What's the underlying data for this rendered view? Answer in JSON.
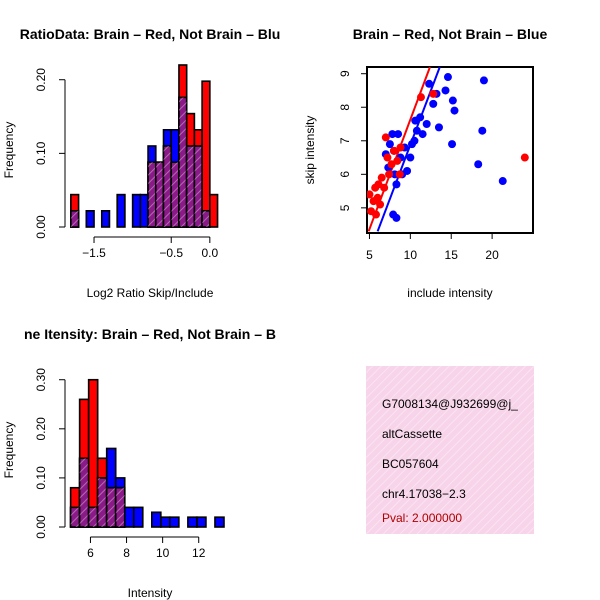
{
  "chart_data": [
    {
      "type": "histogram",
      "title": "RatioData: Brain – Red, Not Brain – Blu",
      "xlabel": "Log2 Ratio Skip/Include",
      "ylabel": "Frequency",
      "xlim": [
        -1.85,
        0.3
      ],
      "ylim": [
        0,
        0.22
      ],
      "xticks": [
        -1.5,
        -0.5,
        0.0
      ],
      "xtick_labels": [
        "−1.5",
        "−0.5",
        "0.0"
      ],
      "yticks": [
        0.0,
        0.1,
        0.2
      ],
      "ytick_labels": [
        "0.00",
        "0.10",
        "0.20"
      ],
      "bin_edges": [
        -1.8,
        -1.7,
        -1.6,
        -1.5,
        -1.4,
        -1.3,
        -1.2,
        -1.1,
        -1.0,
        -0.9,
        -0.8,
        -0.7,
        -0.6,
        -0.5,
        -0.4,
        -0.3,
        -0.2,
        -0.1,
        0.0,
        0.1
      ],
      "series": [
        {
          "name": "Not Brain",
          "color": "#0000ff",
          "values": [
            0.022,
            0,
            0.022,
            0,
            0.022,
            0,
            0.044,
            0,
            0.044,
            0.044,
            0.11,
            0.088,
            0.132,
            0.132,
            0.176,
            0.11,
            0.11,
            0.022,
            0
          ]
        },
        {
          "name": "Brain",
          "color": "#ff0000",
          "values": [
            0.044,
            0,
            0,
            0,
            0,
            0,
            0,
            0,
            0,
            0,
            0.088,
            0.088,
            0.11,
            0.088,
            0.22,
            0.154,
            0.132,
            0.198,
            0.044
          ]
        }
      ],
      "overlap_color": "#8b1a89"
    },
    {
      "type": "scatter",
      "title": "Brain – Red, Not Brain – Blue",
      "xlabel": "include intensity",
      "ylabel": "skip intensity",
      "xlim": [
        4.7,
        25.0
      ],
      "ylim": [
        4.25,
        9.2
      ],
      "xticks": [
        5,
        10,
        15,
        20
      ],
      "xtick_labels": [
        "5",
        "10",
        "15",
        "20"
      ],
      "yticks": [
        5,
        6,
        7,
        8,
        9
      ],
      "ytick_labels": [
        "5",
        "6",
        "7",
        "8",
        "9"
      ],
      "series": [
        {
          "name": "Not Brain",
          "color": "#0000ff",
          "points": [
            [
              7.0,
              6.6
            ],
            [
              7.3,
              6.2
            ],
            [
              7.5,
              6.9
            ],
            [
              7.8,
              7.2
            ],
            [
              8.0,
              6.7
            ],
            [
              8.1,
              6.0
            ],
            [
              8.3,
              5.7
            ],
            [
              7.9,
              4.8
            ],
            [
              8.3,
              4.7
            ],
            [
              8.5,
              7.2
            ],
            [
              8.8,
              6.5
            ],
            [
              9.0,
              6.0
            ],
            [
              9.3,
              6.8
            ],
            [
              9.6,
              6.1
            ],
            [
              10.0,
              6.5
            ],
            [
              10.2,
              6.9
            ],
            [
              10.5,
              7.0
            ],
            [
              10.6,
              7.6
            ],
            [
              10.8,
              7.3
            ],
            [
              11.2,
              7.7
            ],
            [
              11.5,
              7.2
            ],
            [
              12.0,
              7.5
            ],
            [
              12.3,
              8.7
            ],
            [
              12.8,
              8.1
            ],
            [
              13.2,
              8.4
            ],
            [
              13.5,
              7.4
            ],
            [
              14.3,
              8.5
            ],
            [
              14.6,
              8.9
            ],
            [
              15.2,
              8.2
            ],
            [
              15.4,
              7.9
            ],
            [
              15.1,
              6.9
            ],
            [
              18.3,
              6.3
            ],
            [
              18.8,
              7.3
            ],
            [
              19.0,
              8.8
            ],
            [
              21.3,
              5.8
            ]
          ],
          "fit": [
            [
              6.0,
              4.3
            ],
            [
              13.6,
              9.2
            ]
          ]
        },
        {
          "name": "Brain",
          "color": "#ff0000",
          "points": [
            [
              5.0,
              5.4
            ],
            [
              5.2,
              4.9
            ],
            [
              5.5,
              5.2
            ],
            [
              5.7,
              5.6
            ],
            [
              5.8,
              4.8
            ],
            [
              6.0,
              5.3
            ],
            [
              6.1,
              5.7
            ],
            [
              6.3,
              5.1
            ],
            [
              6.5,
              5.9
            ],
            [
              6.8,
              5.6
            ],
            [
              7.0,
              7.1
            ],
            [
              7.2,
              6.5
            ],
            [
              7.4,
              6.0
            ],
            [
              7.7,
              6.3
            ],
            [
              8.0,
              6.7
            ],
            [
              8.4,
              6.4
            ],
            [
              8.7,
              6.0
            ],
            [
              8.8,
              6.8
            ],
            [
              11.3,
              8.3
            ],
            [
              12.8,
              8.4
            ],
            [
              24.0,
              6.5
            ]
          ],
          "fit": [
            [
              4.9,
              4.3
            ],
            [
              12.4,
              9.2
            ]
          ]
        }
      ]
    },
    {
      "type": "histogram",
      "title": "ne Itensity: Brain – Red, Not Brain – B",
      "xlabel": "Intensity",
      "ylabel": "Frequency",
      "xlim": [
        4.7,
        13.9
      ],
      "ylim": [
        0,
        0.33
      ],
      "xticks": [
        6,
        8,
        10,
        12
      ],
      "xtick_labels": [
        "6",
        "8",
        "10",
        "12"
      ],
      "yticks": [
        0.0,
        0.1,
        0.2,
        0.3
      ],
      "ytick_labels": [
        "0.00",
        "0.10",
        "0.20",
        "0.30"
      ],
      "bin_edges": [
        4.9,
        5.4,
        5.9,
        6.4,
        6.9,
        7.4,
        7.9,
        8.4,
        8.9,
        9.4,
        9.9,
        10.4,
        10.9,
        11.4,
        11.9,
        12.4,
        12.9,
        13.4
      ],
      "series": [
        {
          "name": "Not Brain",
          "color": "#0000ff",
          "values": [
            0.04,
            0.14,
            0.04,
            0.1,
            0.16,
            0.1,
            0.04,
            0.04,
            0,
            0.03,
            0.02,
            0.02,
            0,
            0.02,
            0.02,
            0,
            0.02
          ]
        },
        {
          "name": "Brain",
          "color": "#ff0000",
          "values": [
            0.08,
            0.26,
            0.3,
            0.14,
            0.08,
            0.08,
            0,
            0,
            0,
            0,
            0,
            0,
            0,
            0,
            0,
            0,
            0
          ]
        }
      ],
      "overlap_color": "#8b1a89"
    }
  ],
  "info_panel": {
    "lines": [
      "G7008134@J932699@j_",
      "altCassette",
      "BC057604",
      "chr4.17038−2.3"
    ],
    "pval": "Pval: 2.000000",
    "pval_color": "#b00000",
    "background": "#f7d4e9"
  }
}
